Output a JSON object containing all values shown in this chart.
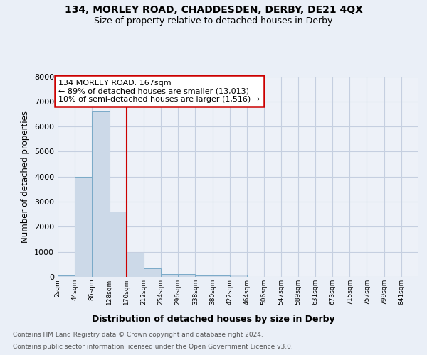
{
  "title": "134, MORLEY ROAD, CHADDESDEN, DERBY, DE21 4QX",
  "subtitle": "Size of property relative to detached houses in Derby",
  "xlabel": "Distribution of detached houses by size in Derby",
  "ylabel": "Number of detached properties",
  "footnote1": "Contains HM Land Registry data © Crown copyright and database right 2024.",
  "footnote2": "Contains public sector information licensed under the Open Government Licence v3.0.",
  "bin_labels": [
    "2sqm",
    "44sqm",
    "86sqm",
    "128sqm",
    "170sqm",
    "212sqm",
    "254sqm",
    "296sqm",
    "338sqm",
    "380sqm",
    "422sqm",
    "464sqm",
    "506sqm",
    "547sqm",
    "589sqm",
    "631sqm",
    "673sqm",
    "715sqm",
    "757sqm",
    "799sqm",
    "841sqm"
  ],
  "bin_edges": [
    2,
    44,
    86,
    128,
    170,
    212,
    254,
    296,
    338,
    380,
    422,
    464,
    506,
    547,
    589,
    631,
    673,
    715,
    757,
    799,
    841
  ],
  "bar_heights": [
    60,
    4000,
    6600,
    2600,
    950,
    330,
    120,
    110,
    60,
    50,
    80,
    0,
    0,
    0,
    0,
    0,
    0,
    0,
    0,
    0
  ],
  "bar_color": "#ccd9e8",
  "bar_edge_color": "#7aaac8",
  "property_line_x": 170,
  "property_line_color": "#cc0000",
  "annotation_line1": "134 MORLEY ROAD: 167sqm",
  "annotation_line2": "← 89% of detached houses are smaller (13,013)",
  "annotation_line3": "10% of semi-detached houses are larger (1,516) →",
  "annotation_box_color": "#cc0000",
  "ylim": [
    0,
    8000
  ],
  "yticks": [
    0,
    1000,
    2000,
    3000,
    4000,
    5000,
    6000,
    7000,
    8000
  ],
  "grid_color": "#c5cfe0",
  "background_color": "#eaeff7",
  "plot_bg_color": "#edf1f8"
}
